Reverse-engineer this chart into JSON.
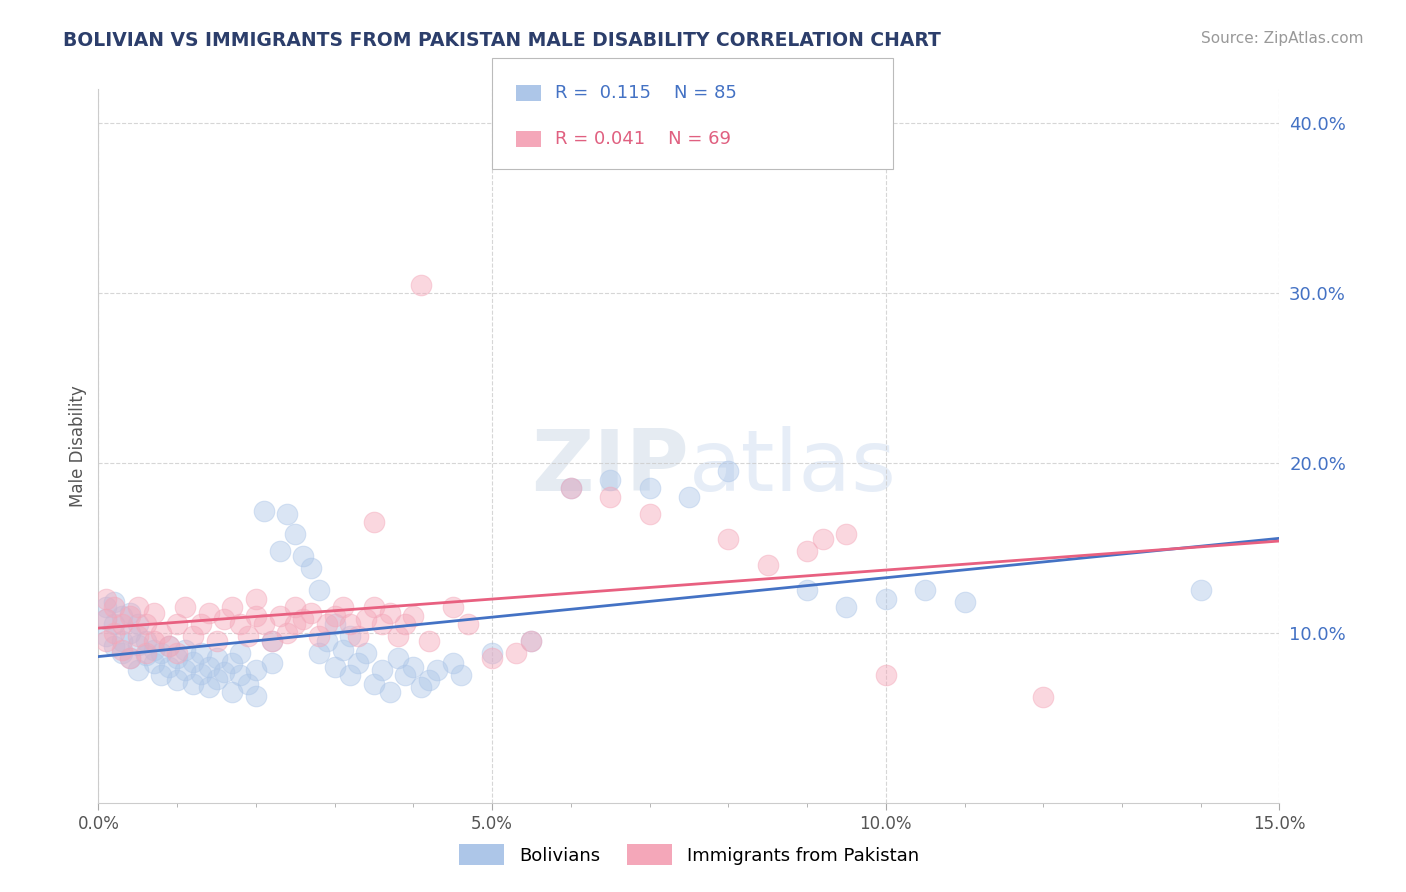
{
  "title": "BOLIVIAN VS IMMIGRANTS FROM PAKISTAN MALE DISABILITY CORRELATION CHART",
  "source": "Source: ZipAtlas.com",
  "ylabel": "Male Disability",
  "xlim": [
    0.0,
    0.15
  ],
  "ylim": [
    0.0,
    0.42
  ],
  "yticks": [
    0.1,
    0.2,
    0.3,
    0.4
  ],
  "ytick_labels": [
    "10.0%",
    "20.0%",
    "30.0%",
    "40.0%"
  ],
  "xticks": [
    0.0,
    0.05,
    0.1,
    0.15
  ],
  "xtick_labels": [
    "0.0%",
    "5.0%",
    "10.0%",
    "15.0%"
  ],
  "blue_R": 0.115,
  "blue_N": 85,
  "pink_R": 0.041,
  "pink_N": 69,
  "blue_color": "#adc6e8",
  "pink_color": "#f4a7b9",
  "blue_line_color": "#4472c4",
  "pink_line_color": "#e86080",
  "legend_label_blue": "Bolivians",
  "legend_label_pink": "Immigrants from Pakistan",
  "watermark": "ZIPatlas",
  "blue_scatter": [
    [
      0.001,
      0.115
    ],
    [
      0.001,
      0.108
    ],
    [
      0.001,
      0.098
    ],
    [
      0.002,
      0.105
    ],
    [
      0.002,
      0.092
    ],
    [
      0.002,
      0.118
    ],
    [
      0.003,
      0.095
    ],
    [
      0.003,
      0.088
    ],
    [
      0.003,
      0.11
    ],
    [
      0.004,
      0.1
    ],
    [
      0.004,
      0.085
    ],
    [
      0.004,
      0.112
    ],
    [
      0.005,
      0.093
    ],
    [
      0.005,
      0.078
    ],
    [
      0.005,
      0.105
    ],
    [
      0.006,
      0.087
    ],
    [
      0.006,
      0.095
    ],
    [
      0.007,
      0.082
    ],
    [
      0.007,
      0.09
    ],
    [
      0.008,
      0.075
    ],
    [
      0.008,
      0.088
    ],
    [
      0.009,
      0.08
    ],
    [
      0.009,
      0.092
    ],
    [
      0.01,
      0.085
    ],
    [
      0.01,
      0.072
    ],
    [
      0.011,
      0.078
    ],
    [
      0.011,
      0.09
    ],
    [
      0.012,
      0.083
    ],
    [
      0.012,
      0.07
    ],
    [
      0.013,
      0.076
    ],
    [
      0.013,
      0.088
    ],
    [
      0.014,
      0.08
    ],
    [
      0.014,
      0.068
    ],
    [
      0.015,
      0.073
    ],
    [
      0.015,
      0.085
    ],
    [
      0.016,
      0.077
    ],
    [
      0.017,
      0.082
    ],
    [
      0.017,
      0.065
    ],
    [
      0.018,
      0.075
    ],
    [
      0.018,
      0.088
    ],
    [
      0.019,
      0.07
    ],
    [
      0.02,
      0.078
    ],
    [
      0.02,
      0.063
    ],
    [
      0.021,
      0.172
    ],
    [
      0.022,
      0.095
    ],
    [
      0.022,
      0.082
    ],
    [
      0.023,
      0.148
    ],
    [
      0.024,
      0.17
    ],
    [
      0.025,
      0.158
    ],
    [
      0.026,
      0.145
    ],
    [
      0.027,
      0.138
    ],
    [
      0.028,
      0.125
    ],
    [
      0.028,
      0.088
    ],
    [
      0.029,
      0.095
    ],
    [
      0.03,
      0.105
    ],
    [
      0.03,
      0.08
    ],
    [
      0.031,
      0.09
    ],
    [
      0.032,
      0.075
    ],
    [
      0.032,
      0.098
    ],
    [
      0.033,
      0.082
    ],
    [
      0.034,
      0.088
    ],
    [
      0.035,
      0.07
    ],
    [
      0.036,
      0.078
    ],
    [
      0.037,
      0.065
    ],
    [
      0.038,
      0.085
    ],
    [
      0.039,
      0.075
    ],
    [
      0.04,
      0.08
    ],
    [
      0.041,
      0.068
    ],
    [
      0.042,
      0.072
    ],
    [
      0.043,
      0.078
    ],
    [
      0.045,
      0.082
    ],
    [
      0.046,
      0.075
    ],
    [
      0.05,
      0.088
    ],
    [
      0.055,
      0.095
    ],
    [
      0.06,
      0.185
    ],
    [
      0.065,
      0.19
    ],
    [
      0.07,
      0.185
    ],
    [
      0.075,
      0.18
    ],
    [
      0.08,
      0.195
    ],
    [
      0.09,
      0.125
    ],
    [
      0.095,
      0.115
    ],
    [
      0.1,
      0.12
    ],
    [
      0.105,
      0.125
    ],
    [
      0.11,
      0.118
    ],
    [
      0.14,
      0.125
    ]
  ],
  "pink_scatter": [
    [
      0.001,
      0.12
    ],
    [
      0.001,
      0.108
    ],
    [
      0.001,
      0.095
    ],
    [
      0.002,
      0.115
    ],
    [
      0.002,
      0.1
    ],
    [
      0.003,
      0.105
    ],
    [
      0.003,
      0.09
    ],
    [
      0.004,
      0.11
    ],
    [
      0.004,
      0.085
    ],
    [
      0.005,
      0.098
    ],
    [
      0.005,
      0.115
    ],
    [
      0.006,
      0.105
    ],
    [
      0.006,
      0.088
    ],
    [
      0.007,
      0.112
    ],
    [
      0.007,
      0.095
    ],
    [
      0.008,
      0.1
    ],
    [
      0.009,
      0.092
    ],
    [
      0.01,
      0.105
    ],
    [
      0.01,
      0.088
    ],
    [
      0.011,
      0.115
    ],
    [
      0.012,
      0.098
    ],
    [
      0.013,
      0.105
    ],
    [
      0.014,
      0.112
    ],
    [
      0.015,
      0.095
    ],
    [
      0.016,
      0.108
    ],
    [
      0.017,
      0.115
    ],
    [
      0.018,
      0.105
    ],
    [
      0.019,
      0.098
    ],
    [
      0.02,
      0.11
    ],
    [
      0.02,
      0.12
    ],
    [
      0.021,
      0.105
    ],
    [
      0.022,
      0.095
    ],
    [
      0.023,
      0.11
    ],
    [
      0.024,
      0.1
    ],
    [
      0.025,
      0.115
    ],
    [
      0.025,
      0.105
    ],
    [
      0.026,
      0.108
    ],
    [
      0.027,
      0.112
    ],
    [
      0.028,
      0.098
    ],
    [
      0.029,
      0.105
    ],
    [
      0.03,
      0.11
    ],
    [
      0.031,
      0.115
    ],
    [
      0.032,
      0.105
    ],
    [
      0.033,
      0.098
    ],
    [
      0.034,
      0.108
    ],
    [
      0.035,
      0.115
    ],
    [
      0.035,
      0.165
    ],
    [
      0.036,
      0.105
    ],
    [
      0.037,
      0.112
    ],
    [
      0.038,
      0.098
    ],
    [
      0.039,
      0.105
    ],
    [
      0.04,
      0.11
    ],
    [
      0.041,
      0.305
    ],
    [
      0.042,
      0.095
    ],
    [
      0.045,
      0.115
    ],
    [
      0.047,
      0.105
    ],
    [
      0.05,
      0.085
    ],
    [
      0.053,
      0.088
    ],
    [
      0.055,
      0.095
    ],
    [
      0.06,
      0.185
    ],
    [
      0.065,
      0.18
    ],
    [
      0.07,
      0.17
    ],
    [
      0.08,
      0.155
    ],
    [
      0.085,
      0.14
    ],
    [
      0.09,
      0.148
    ],
    [
      0.092,
      0.155
    ],
    [
      0.095,
      0.158
    ],
    [
      0.1,
      0.075
    ],
    [
      0.12,
      0.062
    ]
  ]
}
